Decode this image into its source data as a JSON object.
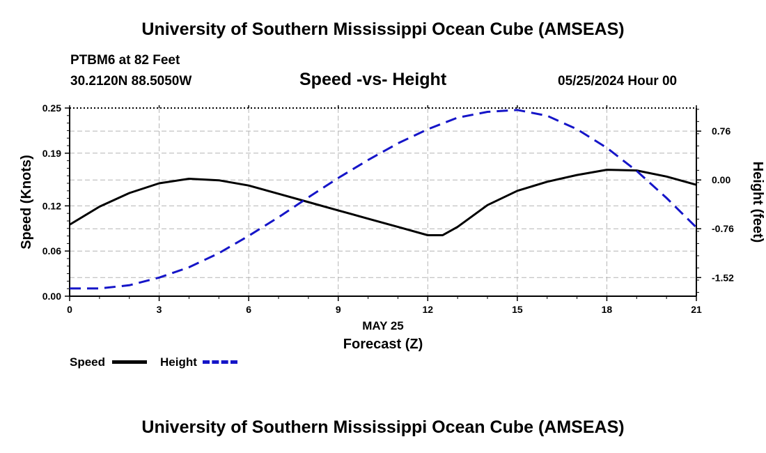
{
  "header": {
    "title": "University of Southern Mississippi Ocean Cube (AMSEAS)",
    "station": "PTBM6 at 82 Feet",
    "coords": "30.2120N  88.5050W",
    "subtitle": "Speed -vs- Height",
    "datetime": "05/25/2024 Hour 00"
  },
  "footer": {
    "title": "University of Southern Mississippi Ocean Cube (AMSEAS)"
  },
  "legend": {
    "speed_label": "Speed",
    "height_label": "Height"
  },
  "colors": {
    "speed": "#000000",
    "height": "#1515c8",
    "grid": "#b4b4b4"
  },
  "chart_data": {
    "type": "line",
    "title": "Speed -vs- Height",
    "xlabel": "Forecast (Z)",
    "xlabel_date": "MAY 25",
    "ylabel": "Speed (Knots)",
    "y2label": "Height (feet)",
    "xlim": [
      0,
      21
    ],
    "ylim": [
      0,
      0.25
    ],
    "y2lim": [
      -1.81,
      1.12
    ],
    "x_ticks": [
      0,
      3,
      6,
      9,
      12,
      15,
      18,
      21
    ],
    "y_ticks": [
      0.0,
      0.06,
      0.12,
      0.19,
      0.25
    ],
    "y_tick_labels": [
      "0.00",
      "0.06",
      "0.12",
      "0.19",
      "0.25"
    ],
    "y2_ticks": [
      0.76,
      0.0,
      -0.76,
      -1.52
    ],
    "y2_tick_labels": [
      "0.76",
      "0.00",
      "-0.76",
      "-1.52"
    ],
    "grid": true,
    "series": [
      {
        "name": "Speed",
        "axis": "left",
        "style": "solid",
        "x": [
          0,
          1,
          2,
          3,
          4,
          5,
          6,
          7,
          8,
          9,
          10,
          11,
          12,
          12.5,
          13,
          14,
          15,
          16,
          17,
          18,
          19,
          20,
          21
        ],
        "values": [
          0.095,
          0.119,
          0.137,
          0.15,
          0.156,
          0.154,
          0.147,
          0.136,
          0.125,
          0.114,
          0.103,
          0.092,
          0.081,
          0.081,
          0.092,
          0.121,
          0.14,
          0.152,
          0.161,
          0.168,
          0.167,
          0.159,
          0.148
        ]
      },
      {
        "name": "Height",
        "axis": "right",
        "style": "dashed",
        "x": [
          0,
          1,
          2,
          3,
          4,
          5,
          6,
          7,
          8,
          9,
          10,
          11,
          12,
          13,
          14,
          15,
          16,
          17,
          18,
          19,
          20,
          21
        ],
        "values": [
          -1.69,
          -1.69,
          -1.64,
          -1.52,
          -1.36,
          -1.14,
          -0.87,
          -0.58,
          -0.27,
          0.03,
          0.31,
          0.57,
          0.79,
          0.97,
          1.06,
          1.09,
          1.0,
          0.79,
          0.5,
          0.14,
          -0.28,
          -0.74
        ]
      }
    ]
  }
}
